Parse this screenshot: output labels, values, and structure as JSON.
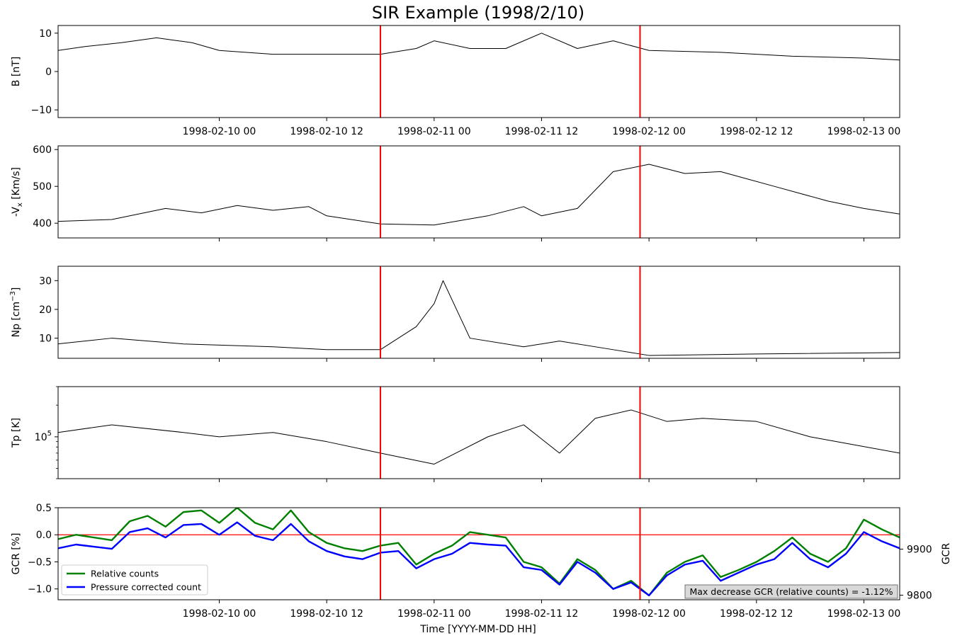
{
  "chart_data": {
    "title": "SIR Example (1998/2/10)",
    "type": "line",
    "xlabel": "Time [YYYY-MM-DD HH]",
    "x_ticks": [
      "1998-02-10 00",
      "1998-02-10 12",
      "1998-02-11 00",
      "1998-02-11 12",
      "1998-02-12 00",
      "1998-02-12 12",
      "1998-02-13 00"
    ],
    "xlim": [
      "1998-02-09 06",
      "1998-02-13 04"
    ],
    "event_lines": [
      "1998-02-10 18",
      "1998-02-11 23"
    ],
    "event_line_color": "#ff0000",
    "line_color": "#000000",
    "panels": [
      {
        "ylabel": "B [nT]",
        "ylim": [
          -12,
          12
        ],
        "yticks": [
          -10,
          0,
          10
        ],
        "series": [
          {
            "color": "#000000",
            "points": [
              [
                "1998-02-09 06",
                5.5
              ],
              [
                "1998-02-09 09",
                6.5
              ],
              [
                "1998-02-09 13",
                7.5
              ],
              [
                "1998-02-09 17",
                8.8
              ],
              [
                "1998-02-09 21",
                7.5
              ],
              [
                "1998-02-10 00",
                5.5
              ],
              [
                "1998-02-10 06",
                4.5
              ],
              [
                "1998-02-10 12",
                4.5
              ],
              [
                "1998-02-10 18",
                4.5
              ],
              [
                "1998-02-10 22",
                6
              ],
              [
                "1998-02-11 00",
                8
              ],
              [
                "1998-02-11 04",
                6
              ],
              [
                "1998-02-11 08",
                6
              ],
              [
                "1998-02-11 12",
                10
              ],
              [
                "1998-02-11 16",
                6
              ],
              [
                "1998-02-11 20",
                8
              ],
              [
                "1998-02-12 00",
                5.5
              ],
              [
                "1998-02-12 08",
                5
              ],
              [
                "1998-02-12 16",
                4
              ],
              [
                "1998-02-13 00",
                3.5
              ],
              [
                "1998-02-13 04",
                3
              ]
            ]
          }
        ]
      },
      {
        "ylabel": "-V_x [Km/s]",
        "ylim": [
          360,
          610
        ],
        "yticks": [
          400,
          500,
          600
        ],
        "series": [
          {
            "color": "#000000",
            "points": [
              [
                "1998-02-09 06",
                405
              ],
              [
                "1998-02-09 12",
                410
              ],
              [
                "1998-02-09 18",
                440
              ],
              [
                "1998-02-09 22",
                428
              ],
              [
                "1998-02-10 02",
                448
              ],
              [
                "1998-02-10 06",
                435
              ],
              [
                "1998-02-10 10",
                445
              ],
              [
                "1998-02-10 12",
                420
              ],
              [
                "1998-02-10 18",
                398
              ],
              [
                "1998-02-11 00",
                395
              ],
              [
                "1998-02-11 06",
                420
              ],
              [
                "1998-02-11 10",
                445
              ],
              [
                "1998-02-11 12",
                420
              ],
              [
                "1998-02-11 16",
                440
              ],
              [
                "1998-02-11 20",
                540
              ],
              [
                "1998-02-12 00",
                560
              ],
              [
                "1998-02-12 04",
                535
              ],
              [
                "1998-02-12 08",
                540
              ],
              [
                "1998-02-12 14",
                500
              ],
              [
                "1998-02-12 20",
                460
              ],
              [
                "1998-02-13 00",
                440
              ],
              [
                "1998-02-13 04",
                425
              ]
            ]
          }
        ]
      },
      {
        "ylabel": "Np [cm^-3]",
        "ylim": [
          3,
          35
        ],
        "yticks": [
          10,
          20,
          30
        ],
        "series": [
          {
            "color": "#000000",
            "points": [
              [
                "1998-02-09 06",
                8
              ],
              [
                "1998-02-09 12",
                10
              ],
              [
                "1998-02-09 20",
                8
              ],
              [
                "1998-02-10 06",
                7
              ],
              [
                "1998-02-10 12",
                6
              ],
              [
                "1998-02-10 18",
                6
              ],
              [
                "1998-02-10 22",
                14
              ],
              [
                "1998-02-11 00",
                22
              ],
              [
                "1998-02-11 01",
                30
              ],
              [
                "1998-02-11 04",
                10
              ],
              [
                "1998-02-11 10",
                7
              ],
              [
                "1998-02-11 14",
                9
              ],
              [
                "1998-02-11 20",
                6
              ],
              [
                "1998-02-12 00",
                4
              ],
              [
                "1998-02-12 12",
                4.5
              ],
              [
                "1998-02-13 04",
                5
              ]
            ]
          }
        ]
      },
      {
        "ylabel": "Tp [K]",
        "yscale": "log",
        "ylim": [
          40000,
          300000
        ],
        "yticks": [
          100000
        ],
        "ytick_labels": [
          "10^5"
        ],
        "series": [
          {
            "color": "#000000",
            "points": [
              [
                "1998-02-09 06",
                110000
              ],
              [
                "1998-02-09 12",
                130000
              ],
              [
                "1998-02-09 20",
                110000
              ],
              [
                "1998-02-10 00",
                100000
              ],
              [
                "1998-02-10 06",
                110000
              ],
              [
                "1998-02-10 12",
                90000
              ],
              [
                "1998-02-10 18",
                70000
              ],
              [
                "1998-02-11 00",
                55000
              ],
              [
                "1998-02-11 06",
                100000
              ],
              [
                "1998-02-11 10",
                130000
              ],
              [
                "1998-02-11 14",
                70000
              ],
              [
                "1998-02-11 18",
                150000
              ],
              [
                "1998-02-11 22",
                180000
              ],
              [
                "1998-02-12 02",
                140000
              ],
              [
                "1998-02-12 06",
                150000
              ],
              [
                "1998-02-12 12",
                140000
              ],
              [
                "1998-02-12 18",
                100000
              ],
              [
                "1998-02-13 04",
                70000
              ]
            ]
          }
        ]
      },
      {
        "ylabel": "GCR [%]",
        "ylabel_right": "GCR",
        "ylim": [
          -1.2,
          0.5
        ],
        "yticks": [
          -1.0,
          -0.5,
          0.0,
          0.5
        ],
        "ylim_right": [
          9790,
          9990
        ],
        "yticks_right": [
          9800,
          9900
        ],
        "zero_line_color": "#ff0000",
        "legend_position": "lower left",
        "legend": [
          {
            "label": "Relative counts",
            "color": "#008000"
          },
          {
            "label": "Pressure corrected count",
            "color": "#0000ff"
          }
        ],
        "annotation": "Max decrease GCR (relative counts) = -1.12%",
        "series": [
          {
            "name": "Relative counts",
            "color": "#008000",
            "points": [
              [
                "1998-02-09 06",
                -0.08
              ],
              [
                "1998-02-09 08",
                0
              ],
              [
                "1998-02-09 10",
                -0.05
              ],
              [
                "1998-02-09 12",
                -0.1
              ],
              [
                "1998-02-09 14",
                0.25
              ],
              [
                "1998-02-09 16",
                0.35
              ],
              [
                "1998-02-09 18",
                0.15
              ],
              [
                "1998-02-09 20",
                0.42
              ],
              [
                "1998-02-09 22",
                0.45
              ],
              [
                "1998-02-10 00",
                0.22
              ],
              [
                "1998-02-10 02",
                0.5
              ],
              [
                "1998-02-10 04",
                0.22
              ],
              [
                "1998-02-10 06",
                0.1
              ],
              [
                "1998-02-10 08",
                0.45
              ],
              [
                "1998-02-10 10",
                0.05
              ],
              [
                "1998-02-10 12",
                -0.15
              ],
              [
                "1998-02-10 14",
                -0.25
              ],
              [
                "1998-02-10 16",
                -0.3
              ],
              [
                "1998-02-10 18",
                -0.2
              ],
              [
                "1998-02-10 20",
                -0.15
              ],
              [
                "1998-02-10 22",
                -0.55
              ],
              [
                "1998-02-11 00",
                -0.35
              ],
              [
                "1998-02-11 02",
                -0.2
              ],
              [
                "1998-02-11 04",
                0.05
              ],
              [
                "1998-02-11 06",
                0.0
              ],
              [
                "1998-02-11 08",
                -0.05
              ],
              [
                "1998-02-11 10",
                -0.5
              ],
              [
                "1998-02-11 12",
                -0.6
              ],
              [
                "1998-02-11 14",
                -0.9
              ],
              [
                "1998-02-11 16",
                -0.45
              ],
              [
                "1998-02-11 18",
                -0.65
              ],
              [
                "1998-02-11 20",
                -1.0
              ],
              [
                "1998-02-11 22",
                -0.85
              ],
              [
                "1998-02-12 00",
                -1.12
              ],
              [
                "1998-02-12 02",
                -0.7
              ],
              [
                "1998-02-12 04",
                -0.5
              ],
              [
                "1998-02-12 06",
                -0.38
              ],
              [
                "1998-02-12 08",
                -0.78
              ],
              [
                "1998-02-12 10",
                -0.65
              ],
              [
                "1998-02-12 12",
                -0.5
              ],
              [
                "1998-02-12 14",
                -0.3
              ],
              [
                "1998-02-12 16",
                -0.05
              ],
              [
                "1998-02-12 18",
                -0.35
              ],
              [
                "1998-02-12 20",
                -0.5
              ],
              [
                "1998-02-12 22",
                -0.25
              ],
              [
                "1998-02-13 00",
                0.28
              ],
              [
                "1998-02-13 02",
                0.1
              ],
              [
                "1998-02-13 04",
                -0.05
              ]
            ]
          },
          {
            "name": "Pressure corrected count",
            "color": "#0000ff",
            "points": [
              [
                "1998-02-09 06",
                -0.25
              ],
              [
                "1998-02-09 08",
                -0.18
              ],
              [
                "1998-02-09 10",
                -0.22
              ],
              [
                "1998-02-09 12",
                -0.26
              ],
              [
                "1998-02-09 14",
                0.05
              ],
              [
                "1998-02-09 16",
                0.12
              ],
              [
                "1998-02-09 18",
                -0.05
              ],
              [
                "1998-02-09 20",
                0.18
              ],
              [
                "1998-02-09 22",
                0.2
              ],
              [
                "1998-02-10 00",
                0.0
              ],
              [
                "1998-02-10 02",
                0.23
              ],
              [
                "1998-02-10 04",
                -0.02
              ],
              [
                "1998-02-10 06",
                -0.1
              ],
              [
                "1998-02-10 08",
                0.2
              ],
              [
                "1998-02-10 10",
                -0.12
              ],
              [
                "1998-02-10 12",
                -0.3
              ],
              [
                "1998-02-10 14",
                -0.4
              ],
              [
                "1998-02-10 16",
                -0.45
              ],
              [
                "1998-02-10 18",
                -0.33
              ],
              [
                "1998-02-10 20",
                -0.3
              ],
              [
                "1998-02-10 22",
                -0.62
              ],
              [
                "1998-02-11 00",
                -0.45
              ],
              [
                "1998-02-11 02",
                -0.35
              ],
              [
                "1998-02-11 04",
                -0.15
              ],
              [
                "1998-02-11 06",
                -0.18
              ],
              [
                "1998-02-11 08",
                -0.2
              ],
              [
                "1998-02-11 10",
                -0.6
              ],
              [
                "1998-02-11 12",
                -0.65
              ],
              [
                "1998-02-11 14",
                -0.92
              ],
              [
                "1998-02-11 16",
                -0.5
              ],
              [
                "1998-02-11 18",
                -0.7
              ],
              [
                "1998-02-11 20",
                -1.0
              ],
              [
                "1998-02-11 22",
                -0.88
              ],
              [
                "1998-02-12 00",
                -1.12
              ],
              [
                "1998-02-12 02",
                -0.75
              ],
              [
                "1998-02-12 04",
                -0.55
              ],
              [
                "1998-02-12 06",
                -0.48
              ],
              [
                "1998-02-12 08",
                -0.85
              ],
              [
                "1998-02-12 10",
                -0.7
              ],
              [
                "1998-02-12 12",
                -0.55
              ],
              [
                "1998-02-12 14",
                -0.45
              ],
              [
                "1998-02-12 16",
                -0.15
              ],
              [
                "1998-02-12 18",
                -0.45
              ],
              [
                "1998-02-12 20",
                -0.6
              ],
              [
                "1998-02-12 22",
                -0.35
              ],
              [
                "1998-02-13 00",
                0.05
              ],
              [
                "1998-02-13 02",
                -0.12
              ],
              [
                "1998-02-13 04",
                -0.25
              ]
            ]
          }
        ]
      }
    ]
  }
}
